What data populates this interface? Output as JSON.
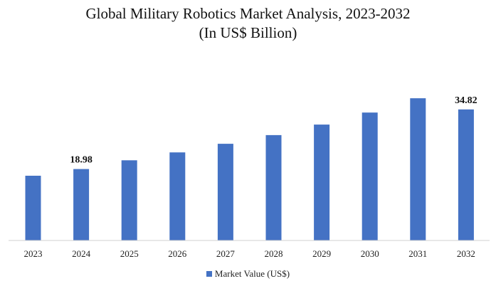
{
  "chart_data": {
    "type": "bar",
    "title": "Global Military Robotics Market Analysis, 2023-2032",
    "subtitle": "(In US$ Billion)",
    "categories": [
      "2023",
      "2024",
      "2025",
      "2026",
      "2027",
      "2028",
      "2029",
      "2030",
      "2031",
      "2032"
    ],
    "series": [
      {
        "name": "Market Value (US$)",
        "values": [
          17.2,
          18.98,
          21.3,
          23.4,
          25.7,
          28.0,
          30.8,
          34.0,
          37.8,
          34.82
        ],
        "data_labels": [
          null,
          "18.98",
          null,
          null,
          null,
          null,
          null,
          null,
          null,
          "34.82"
        ],
        "color": "#4472C4"
      }
    ],
    "ylim": [
      0,
      45
    ],
    "xlabel": "",
    "ylabel": "",
    "grid": false,
    "legend_position": "bottom"
  }
}
